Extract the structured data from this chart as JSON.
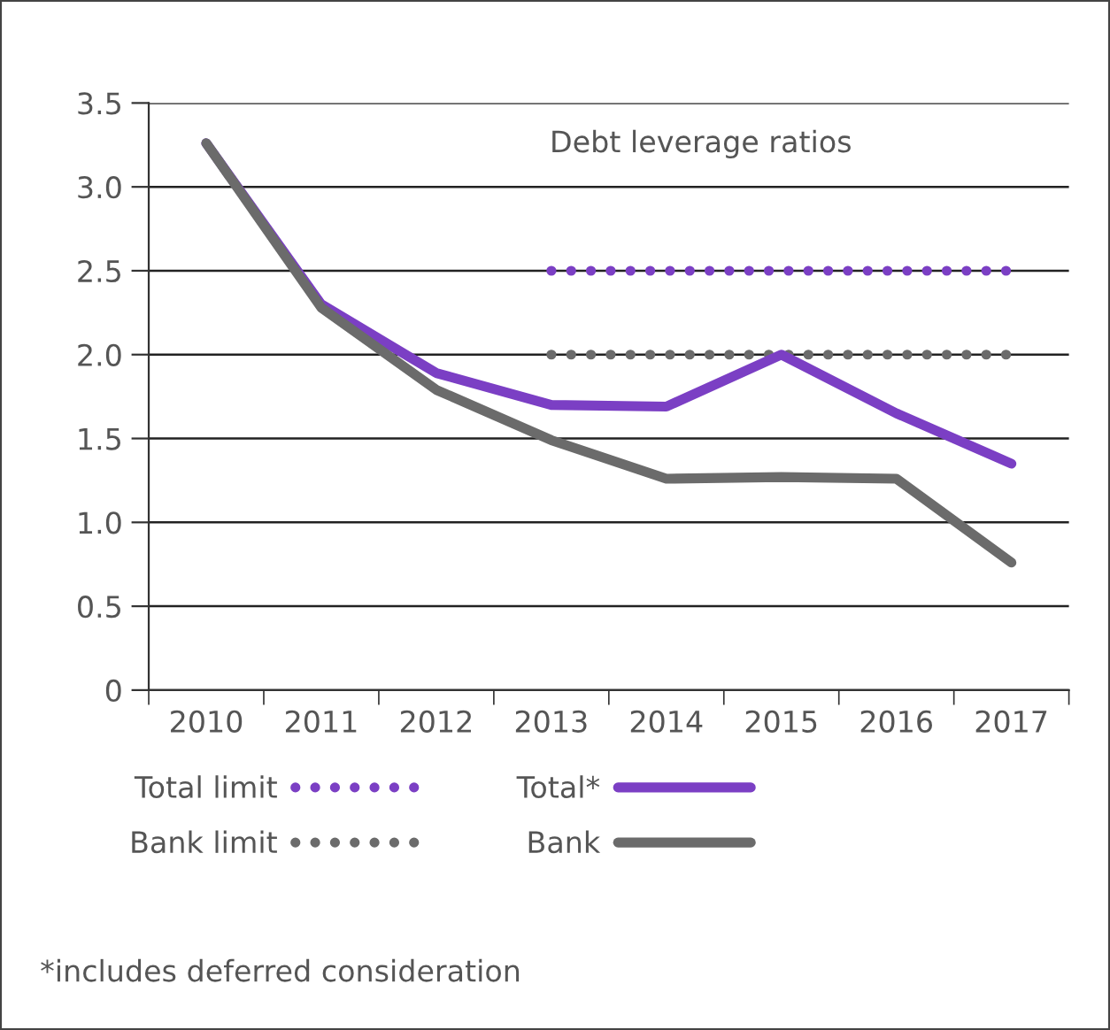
{
  "chart_data": {
    "type": "line",
    "title": "Debt leverage ratios",
    "categories": [
      "2010",
      "2011",
      "2012",
      "2013",
      "2014",
      "2015",
      "2016",
      "2017"
    ],
    "series": [
      {
        "name": "Total limit",
        "color": "#7b3fc4",
        "line_style": "dotted",
        "values": [
          null,
          null,
          null,
          2.5,
          2.5,
          2.5,
          2.5,
          2.5
        ]
      },
      {
        "name": "Bank limit",
        "color": "#6b6b6b",
        "line_style": "dotted",
        "values": [
          null,
          null,
          null,
          2.0,
          2.0,
          2.0,
          2.0,
          2.0
        ]
      },
      {
        "name": "Total*",
        "color": "#7b3fc4",
        "line_style": "solid",
        "values": [
          3.26,
          2.3,
          1.89,
          1.7,
          1.69,
          2.0,
          1.65,
          1.35
        ]
      },
      {
        "name": "Bank",
        "color": "#6b6b6b",
        "line_style": "solid",
        "values": [
          3.26,
          2.28,
          1.79,
          1.49,
          1.26,
          1.27,
          1.26,
          0.76
        ]
      }
    ],
    "ylim": [
      0,
      3.5
    ],
    "yticks": [
      0,
      0.5,
      {
        "value": 1.0,
        "label": "1.0"
      },
      1.5,
      {
        "value": 2.0,
        "label": "2.0"
      },
      2.5,
      {
        "value": 3.0,
        "label": "3.0"
      },
      3.5
    ],
    "grid": "y",
    "legend": "bottom",
    "marker": "none",
    "annotations": [
      "*includes deferred consideration"
    ]
  }
}
